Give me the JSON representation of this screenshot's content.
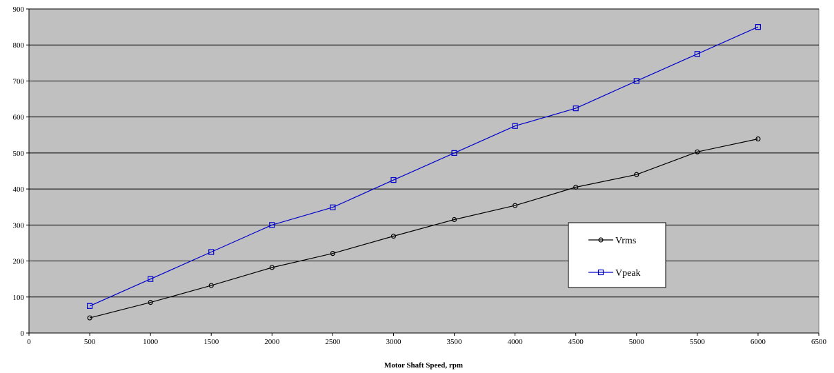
{
  "chart_data": {
    "type": "line",
    "title": "",
    "xlabel": "Motor Shaft Speed, rpm",
    "ylabel": "",
    "xlim": [
      0,
      6500
    ],
    "ylim": [
      0,
      900
    ],
    "x_ticks": [
      0,
      500,
      1000,
      1500,
      2000,
      2500,
      3000,
      3500,
      4000,
      4500,
      5000,
      5500,
      6000,
      6500
    ],
    "y_ticks": [
      0,
      100,
      200,
      300,
      400,
      500,
      600,
      700,
      800,
      900
    ],
    "x_tick_labels": [
      "0",
      "500",
      "1000",
      "1500",
      "2000",
      "2500",
      "3000",
      "3500",
      "4000",
      "4500",
      "5000",
      "5500",
      "6000",
      "6500"
    ],
    "y_tick_labels": [
      "0",
      "100",
      "200",
      "300",
      "400",
      "500",
      "600",
      "700",
      "800",
      "900"
    ],
    "grid": "horizontal",
    "plot_background": "#c0c0c0",
    "legend_position": "right",
    "x": [
      500,
      1000,
      1500,
      2000,
      2500,
      3000,
      3500,
      4000,
      4500,
      5000,
      5500,
      6000
    ],
    "series": [
      {
        "name": "Vrms",
        "color": "#000000",
        "marker": "circle",
        "values": [
          42,
          85,
          132,
          182,
          221,
          269,
          315,
          354,
          405,
          440,
          503,
          539
        ]
      },
      {
        "name": "Vpeak",
        "color": "#0000cc",
        "marker": "square",
        "values": [
          75,
          150,
          225,
          300,
          349,
          425,
          500,
          575,
          624,
          700,
          775,
          850
        ]
      }
    ]
  }
}
